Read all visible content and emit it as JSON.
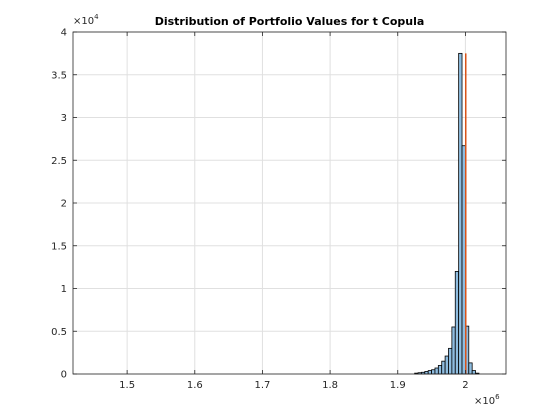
{
  "chart_data": {
    "type": "bar",
    "title": "Distribution of Portfolio Values for t Copula",
    "xlabel": "",
    "ylabel": "",
    "x_exponent_label": "×10",
    "x_exponent_power": "6",
    "y_exponent_label": "×10",
    "y_exponent_power": "4",
    "xlim": [
      1.42,
      2.06
    ],
    "ylim": [
      0,
      4
    ],
    "x_ticks": [
      1.5,
      1.6,
      1.7,
      1.8,
      1.9,
      2
    ],
    "x_tick_labels": [
      "1.5",
      "1.6",
      "1.7",
      "1.8",
      "1.9",
      "2"
    ],
    "y_ticks": [
      0,
      0.5,
      1,
      1.5,
      2,
      2.5,
      3,
      3.5,
      4
    ],
    "y_tick_labels": [
      "0",
      "0.5",
      "1",
      "1.5",
      "2",
      "2.5",
      "3",
      "3.5",
      "4"
    ],
    "grid": true,
    "bin_width": 0.005,
    "bin_starts": [
      1.925,
      1.93,
      1.935,
      1.94,
      1.945,
      1.95,
      1.955,
      1.96,
      1.965,
      1.97,
      1.975,
      1.98,
      1.985,
      1.99,
      1.995,
      2.0,
      2.005,
      2.01,
      2.015
    ],
    "values": [
      0.01,
      0.015,
      0.02,
      0.03,
      0.04,
      0.05,
      0.07,
      0.1,
      0.15,
      0.21,
      0.3,
      0.55,
      1.2,
      3.75,
      2.67,
      0.56,
      0.13,
      0.04,
      0.01
    ],
    "reference_line_x": 2.0005,
    "colors": {
      "bar_fill": "#8fbde0",
      "bar_edge": "#000000",
      "reference_line": "#d95319",
      "axis": "#262626",
      "grid": "#e0e0e0"
    }
  }
}
